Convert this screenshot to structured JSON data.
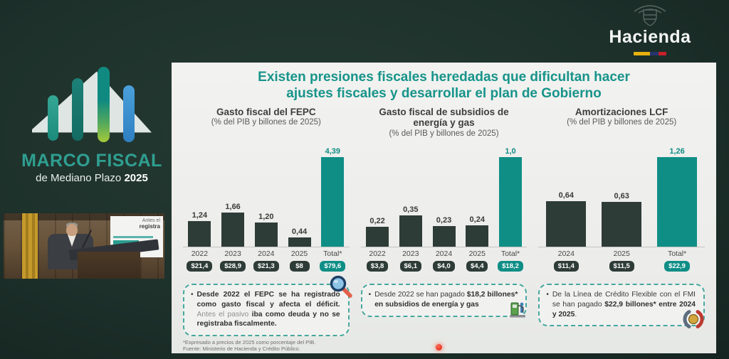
{
  "top_right": {
    "brand": "Hacienda"
  },
  "logo": {
    "title": "MARCO FISCAL",
    "subtitle": "de Mediano Plazo",
    "year": "2025"
  },
  "video": {
    "card_line1": "Antes el",
    "card_line2": "registra"
  },
  "slide": {
    "title_line1": "Existen presiones fiscales heredadas que dificultan hacer",
    "title_line2": "ajustes fiscales y desarrollar el plan de Gobierno",
    "footnote_line1": "*Expresado a precios de 2025 como porcentaje del PIB.",
    "footnote_line2": "Fuente: Ministerio de Hacienda y Crédito Público."
  },
  "colors": {
    "accent_teal": "#0f8e86",
    "title_teal": "#17948a",
    "bar_dark": "#2e3c38",
    "callout_border": "#46a89e"
  },
  "chart_data": [
    {
      "type": "bar",
      "title": "Gasto fiscal del FEPC",
      "subtitle": "(% del PIB y billones de 2025)",
      "categories": [
        "2022",
        "2023",
        "2024",
        "2025",
        "Total*"
      ],
      "values": [
        1.24,
        1.66,
        1.2,
        0.44,
        4.39
      ],
      "value_labels": [
        "1,24",
        "1,66",
        "1,20",
        "0,44",
        "4,39"
      ],
      "badges": [
        "$21,4",
        "$28,9",
        "$21,3",
        "$8",
        "$79,6"
      ],
      "total_index": 4,
      "ylim": [
        0,
        4.6
      ],
      "grid": false,
      "legend": false,
      "units": "% del PIB (bars) y billones de 2025 (badges)"
    },
    {
      "type": "bar",
      "title": "Gasto fiscal de subsidios de energía y gas",
      "subtitle": "(% del PIB y billones de 2025)",
      "categories": [
        "2022",
        "2023",
        "2024",
        "2025",
        "Total*"
      ],
      "values": [
        0.22,
        0.35,
        0.23,
        0.24,
        1.0
      ],
      "value_labels": [
        "0,22",
        "0,35",
        "0,23",
        "0,24",
        "1,0"
      ],
      "badges": [
        "$3,8",
        "$6,1",
        "$4,0",
        "$4,4",
        "$18,2"
      ],
      "total_index": 4,
      "ylim": [
        0,
        1.05
      ],
      "grid": false,
      "legend": false,
      "units": "% del PIB (bars) y billones de 2025 (badges)"
    },
    {
      "type": "bar",
      "title": "Amortizaciones LCF",
      "subtitle": "(% del PIB y billones de 2025)",
      "categories": [
        "2024",
        "2025",
        "Total*"
      ],
      "values": [
        0.64,
        0.63,
        1.26
      ],
      "value_labels": [
        "0,64",
        "0,63",
        "1,26"
      ],
      "badges": [
        "$11,4",
        "$11,5",
        "$22,9"
      ],
      "total_index": 2,
      "ylim": [
        0,
        1.35
      ],
      "grid": false,
      "legend": false,
      "units": "% del PIB (bars) y billones de 2025 (badges)"
    }
  ],
  "callouts": [
    {
      "bullet": "•",
      "icon": "magnifier-icon",
      "parts": [
        {
          "text": "Desde 2022 el FEPC se ha registrado como gasto fiscal y afecta el déficit. ",
          "style": "bold"
        },
        {
          "text": "Antes el pasivo ",
          "style": "muted"
        },
        {
          "text": "iba como deuda y no se registraba fiscalmente.",
          "style": "bold"
        }
      ]
    },
    {
      "bullet": "•",
      "icon": "fuel-pump-icon",
      "parts": [
        {
          "text": "Desde 2022 se han pagado ",
          "style": "regular"
        },
        {
          "text": "$18,2 billones* en subsidios de energía y gas",
          "style": "bold"
        }
      ]
    },
    {
      "bullet": "•",
      "icon": "imf-logo-icon",
      "parts": [
        {
          "text": "De la Línea de Crédito Flexible con el FMI se han pagado ",
          "style": "regular"
        },
        {
          "text": "$22,9 billones* entre 2024 y 2025",
          "style": "bold"
        },
        {
          "text": ".",
          "style": "regular"
        }
      ]
    }
  ]
}
